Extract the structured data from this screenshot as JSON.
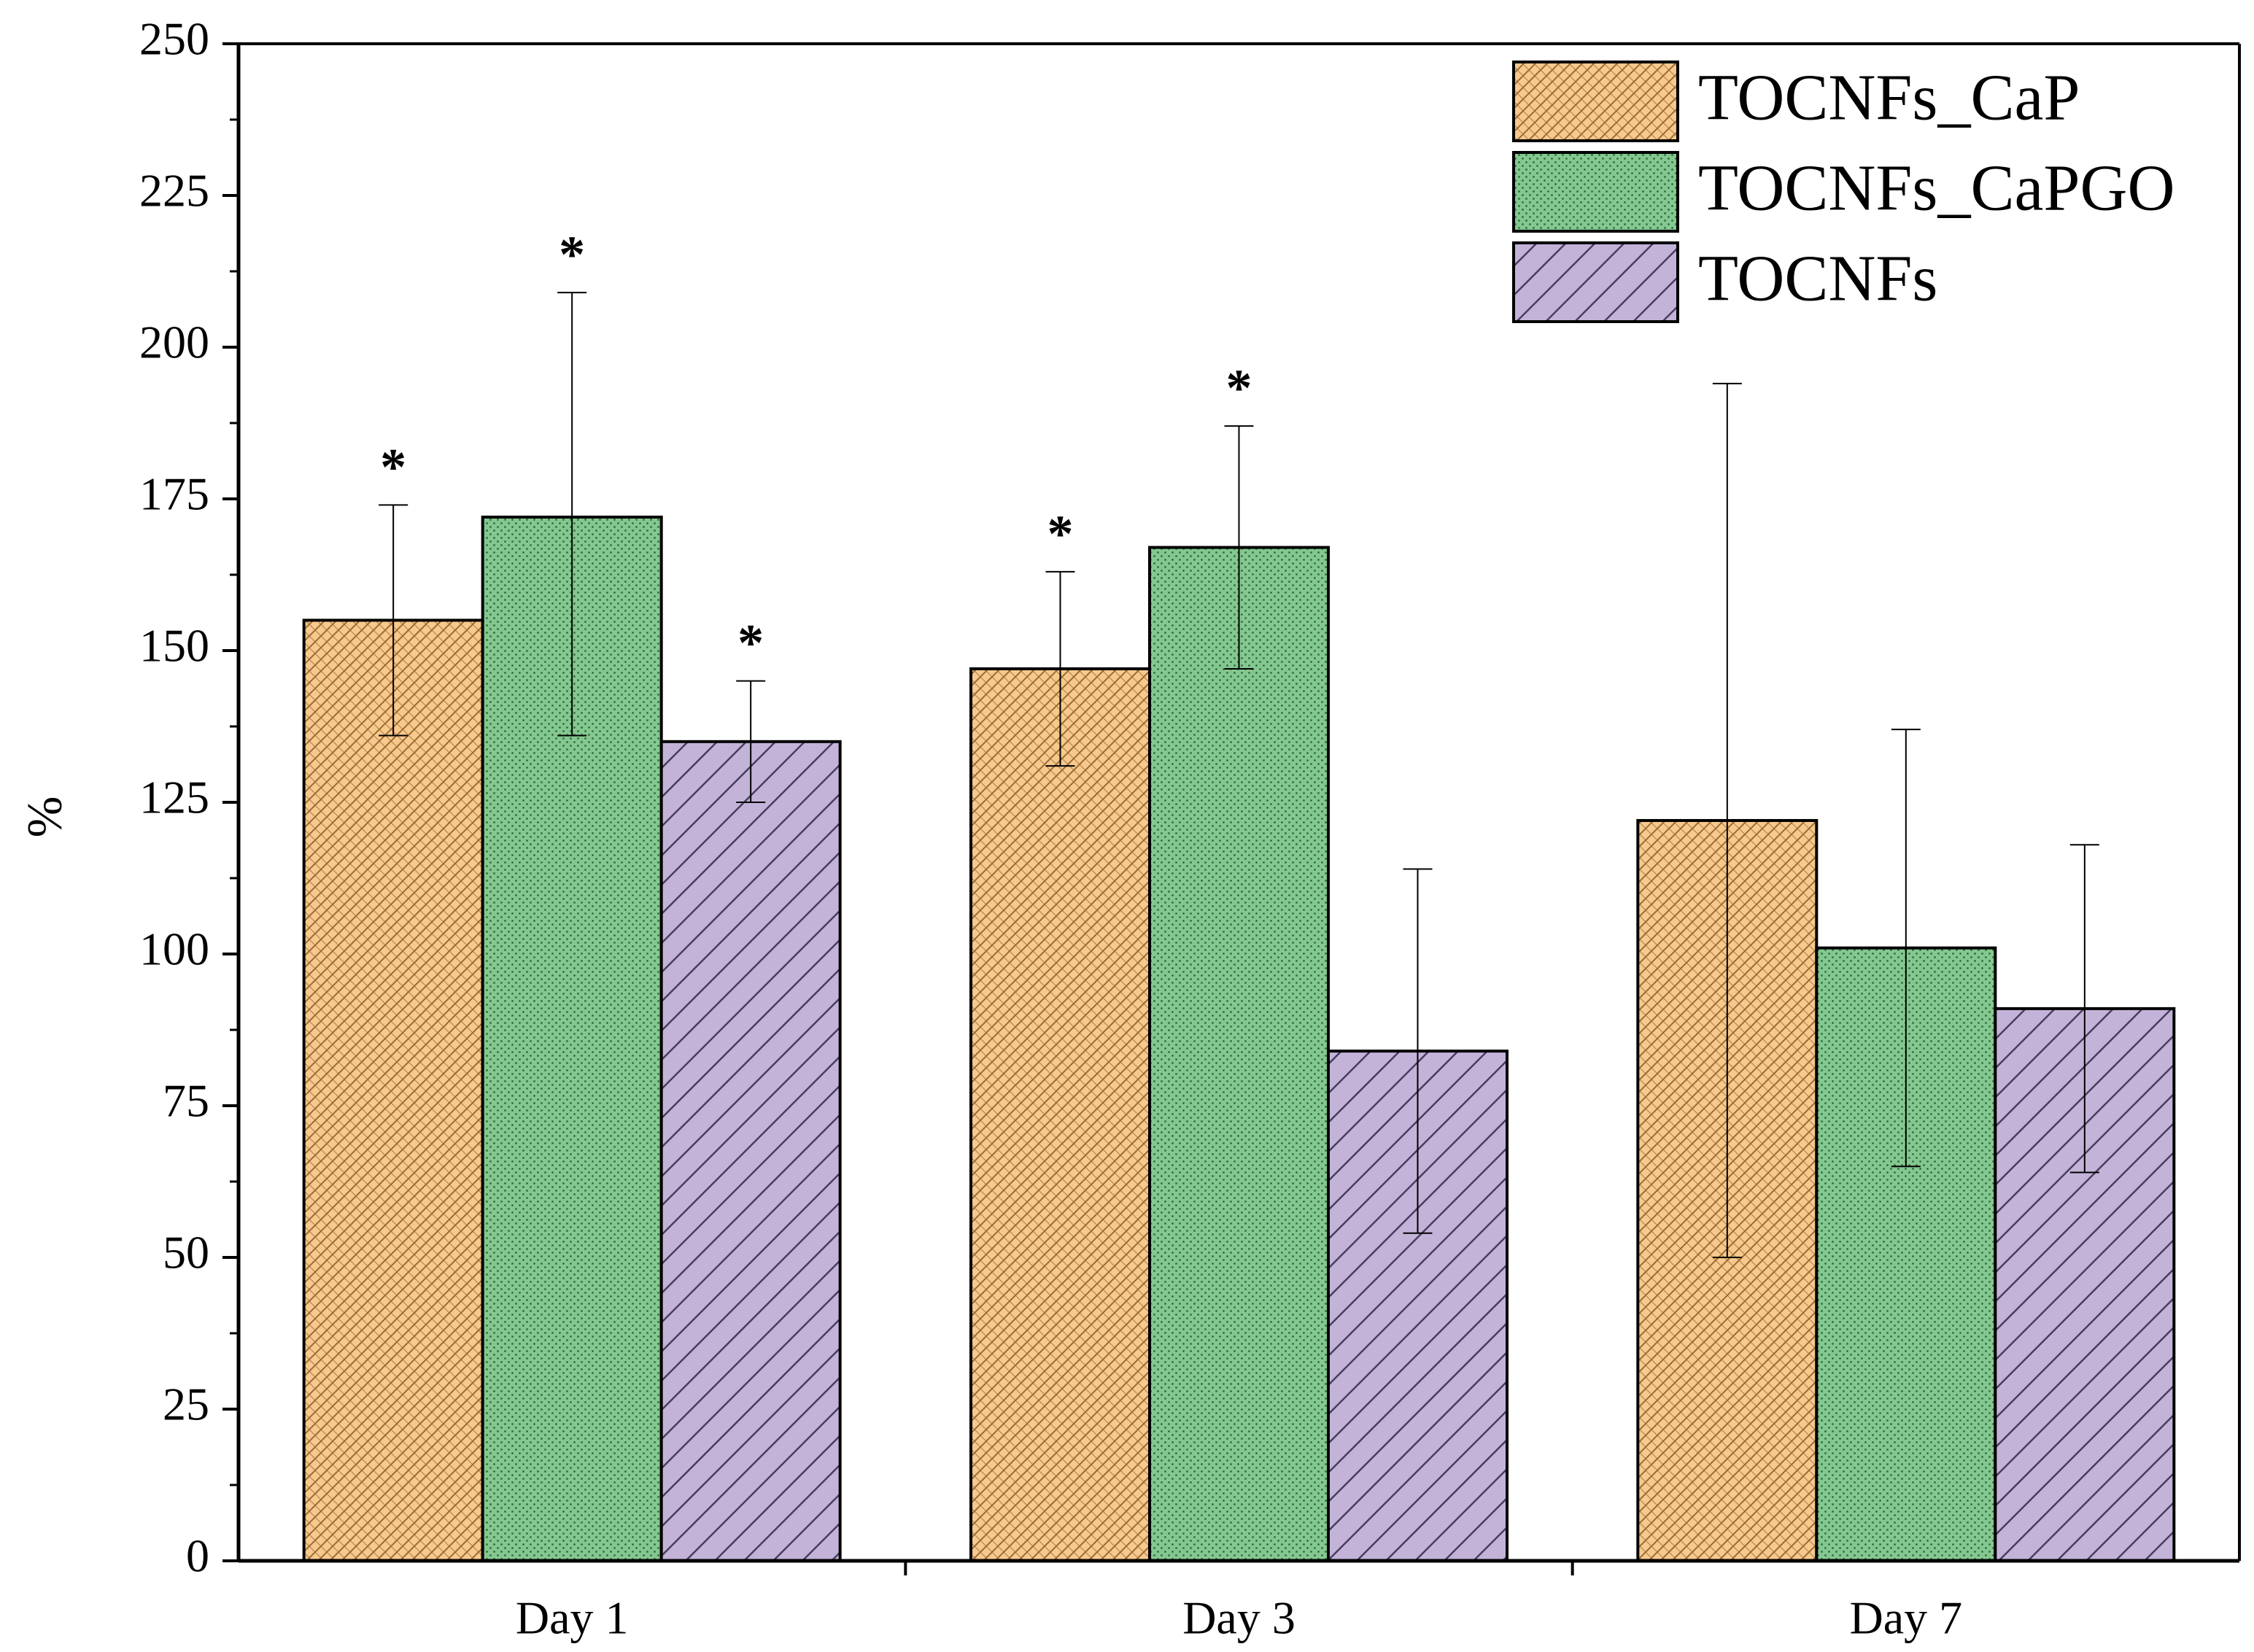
{
  "chart_data": {
    "type": "bar",
    "title": "",
    "xlabel": "",
    "ylabel": "%",
    "ylim": [
      0,
      250
    ],
    "yticks": [
      0,
      25,
      50,
      75,
      100,
      125,
      150,
      175,
      200,
      225,
      250
    ],
    "categories": [
      "Day 1",
      "Day 3",
      "Day 7"
    ],
    "series": [
      {
        "name": "TOCNFs_CaP",
        "color": "#f7c98d",
        "pattern": "crosshatch",
        "values": [
          155,
          147,
          122
        ],
        "error_low": [
          136,
          131,
          50
        ],
        "error_high": [
          174,
          163,
          194
        ],
        "significant": [
          true,
          true,
          false
        ]
      },
      {
        "name": "TOCNFs_CaPGO",
        "color": "#85c790",
        "pattern": "dots",
        "values": [
          172,
          167,
          101
        ],
        "error_low": [
          136,
          147,
          65
        ],
        "error_high": [
          209,
          187,
          137
        ],
        "significant": [
          true,
          true,
          false
        ]
      },
      {
        "name": "TOCNFs",
        "color": "#c3b3d9",
        "pattern": "diagonal",
        "values": [
          135,
          84,
          91
        ],
        "error_low": [
          125,
          54,
          64
        ],
        "error_high": [
          145,
          114,
          118
        ],
        "significant": [
          true,
          false,
          false
        ]
      }
    ],
    "significance_marker": "*",
    "legend_position": "top-right",
    "grid": false
  }
}
